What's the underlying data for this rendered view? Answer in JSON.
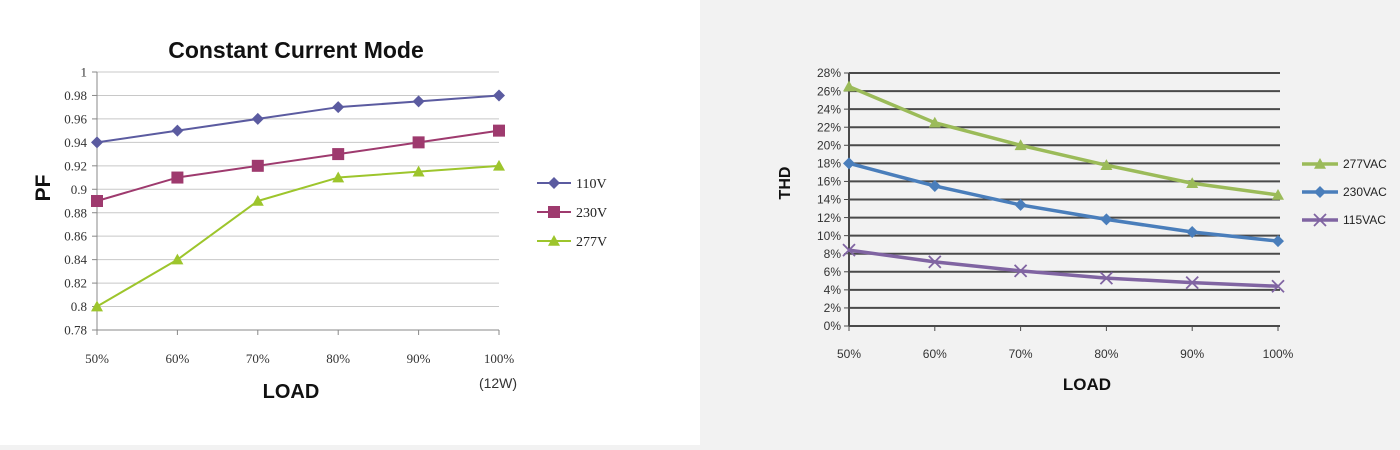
{
  "chart_data": [
    {
      "type": "line",
      "title": "Constant Current Mode",
      "xlabel": "LOAD",
      "ylabel": "PF",
      "x_note": "(12W)",
      "categories": [
        "50%",
        "60%",
        "70%",
        "80%",
        "90%",
        "100%"
      ],
      "ylim": [
        0.78,
        1.0
      ],
      "yticks": [
        "0.78",
        "0.8",
        "0.82",
        "0.84",
        "0.86",
        "0.88",
        "0.9",
        "0.92",
        "0.94",
        "0.96",
        "0.98",
        "1"
      ],
      "grid": true,
      "legend_position": "right",
      "series": [
        {
          "name": "110V",
          "color": "#5b5ba0",
          "marker": "diamond",
          "values": [
            0.94,
            0.95,
            0.96,
            0.97,
            0.975,
            0.98
          ]
        },
        {
          "name": "230V",
          "color": "#9e3a6e",
          "marker": "square",
          "values": [
            0.89,
            0.91,
            0.92,
            0.93,
            0.94,
            0.95
          ]
        },
        {
          "name": "277V",
          "color": "#9dc52c",
          "marker": "triangle",
          "values": [
            0.8,
            0.84,
            0.89,
            0.91,
            0.915,
            0.92
          ]
        }
      ]
    },
    {
      "type": "line",
      "title": "",
      "xlabel": "LOAD",
      "ylabel": "THD",
      "categories": [
        "50%",
        "60%",
        "70%",
        "80%",
        "90%",
        "100%"
      ],
      "ylim": [
        0,
        28
      ],
      "yticks": [
        "0%",
        "2%",
        "4%",
        "6%",
        "8%",
        "10%",
        "12%",
        "14%",
        "16%",
        "18%",
        "20%",
        "22%",
        "24%",
        "26%",
        "28%"
      ],
      "grid": true,
      "legend_position": "right",
      "series": [
        {
          "name": "277VAC",
          "color": "#9bbb59",
          "marker": "triangle",
          "values": [
            26.5,
            22.5,
            20.0,
            17.8,
            15.8,
            14.5
          ]
        },
        {
          "name": "230VAC",
          "color": "#4a7ebb",
          "marker": "diamond",
          "values": [
            18.0,
            15.5,
            13.4,
            11.8,
            10.4,
            9.4
          ]
        },
        {
          "name": "115VAC",
          "color": "#8064a2",
          "marker": "cross",
          "values": [
            8.4,
            7.1,
            6.1,
            5.3,
            4.8,
            4.4
          ]
        }
      ]
    }
  ]
}
